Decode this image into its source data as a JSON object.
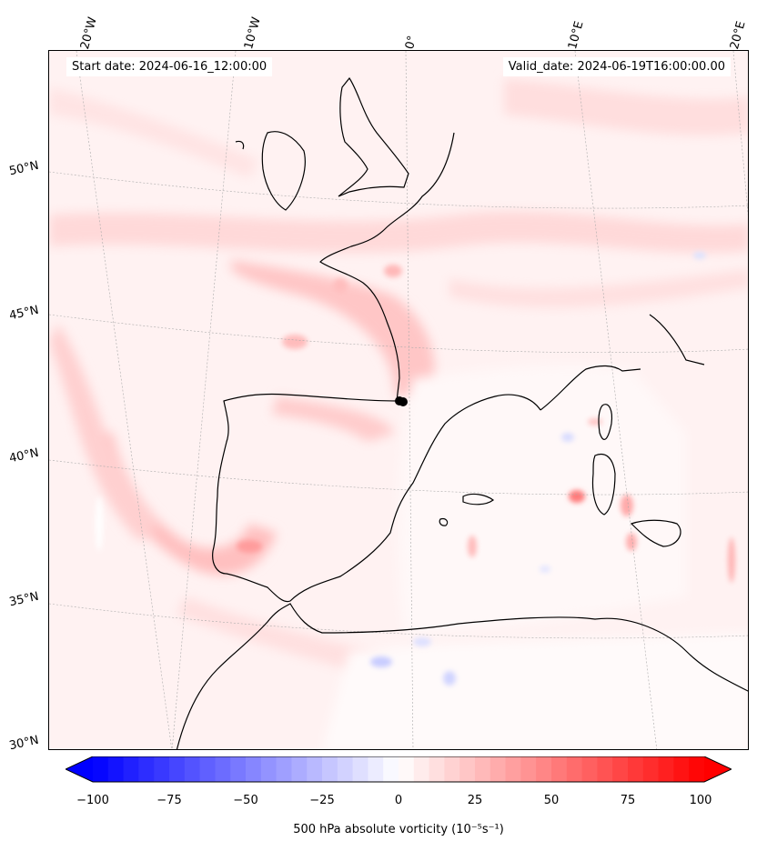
{
  "header": {
    "start_date": "Start date: 2024-06-16_12:00:00",
    "valid_date": "Valid_date: 2024-06-19T16:00:00.00"
  },
  "longitude_labels": [
    "20°W",
    "10°W",
    "0°",
    "10°E",
    "20°E"
  ],
  "latitude_labels": [
    "50°N",
    "45°N",
    "40°N",
    "35°N",
    "30°N"
  ],
  "field": {
    "variable": "500 hPa absolute vorticity",
    "units": "10⁻⁵s⁻¹",
    "range": [
      -100,
      100
    ]
  },
  "colorbar": {
    "ticks": [
      "−100",
      "−75",
      "−50",
      "−25",
      "0",
      "25",
      "50",
      "75",
      "100"
    ],
    "tick_values": [
      -100,
      -75,
      -50,
      -25,
      0,
      25,
      50,
      75,
      100
    ],
    "label": "500 hPa absolute vorticity (10⁻⁵s⁻¹)",
    "negative_color": "#0000ff",
    "positive_color": "#ff0000"
  },
  "marker": {
    "description": "black dot",
    "color": "#000000"
  }
}
